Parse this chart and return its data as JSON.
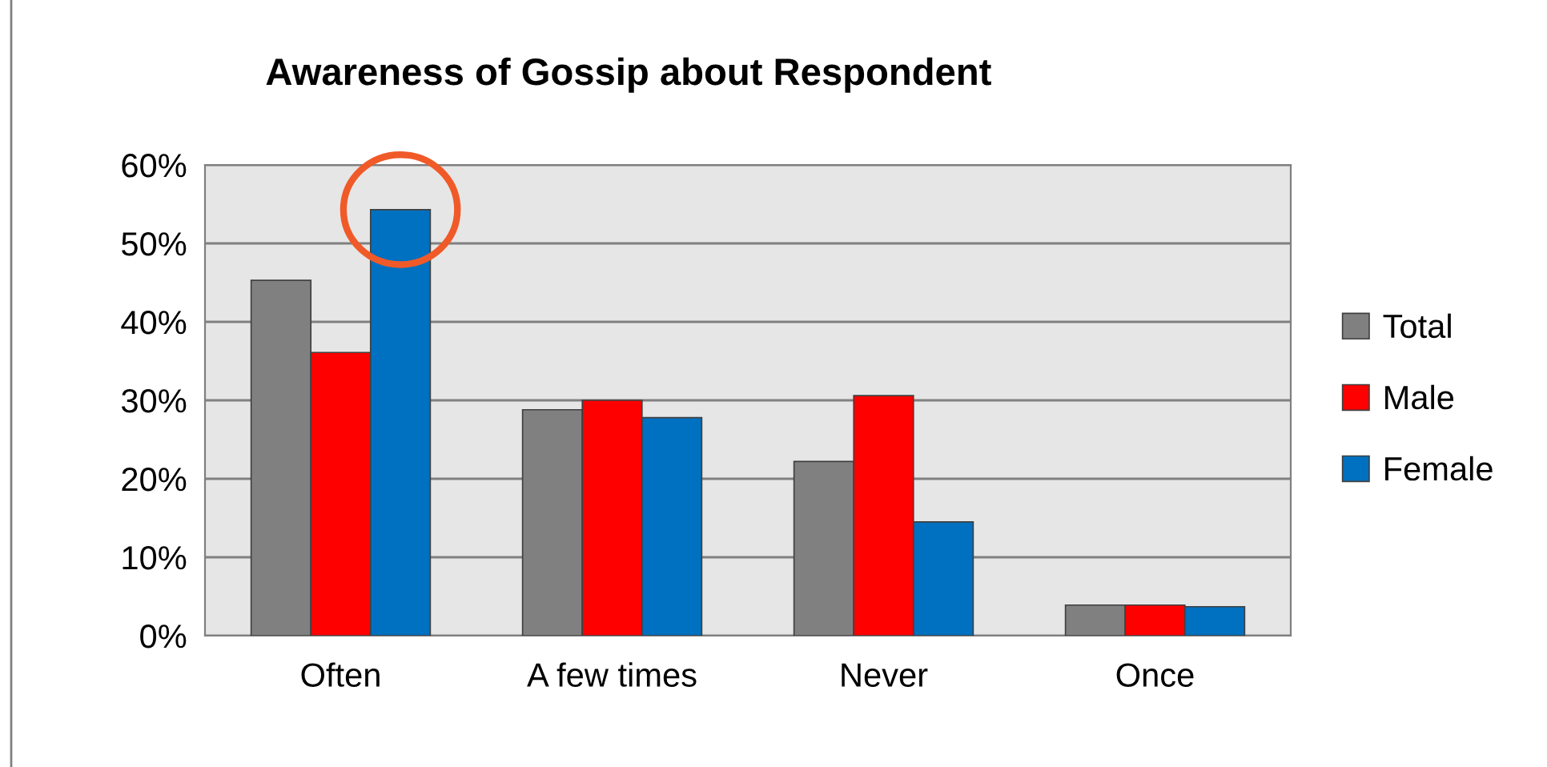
{
  "chart_data": {
    "type": "bar",
    "title": "Awareness of Gossip about Respondent",
    "categories": [
      "Often",
      "A few times",
      "Never",
      "Once"
    ],
    "series": [
      {
        "name": "Total",
        "color": "#808080",
        "values": [
          45.3,
          28.8,
          22.2,
          3.9
        ]
      },
      {
        "name": "Male",
        "color": "#ff0000",
        "values": [
          36.1,
          30.0,
          30.6,
          3.9
        ]
      },
      {
        "name": "Female",
        "color": "#0070c0",
        "values": [
          54.3,
          27.8,
          14.5,
          3.7
        ]
      }
    ],
    "ylim": [
      0,
      60
    ],
    "yticks": [
      {
        "value": 0,
        "label": "0%"
      },
      {
        "value": 10,
        "label": "10%"
      },
      {
        "value": 20,
        "label": "20%"
      },
      {
        "value": 30,
        "label": "30%"
      },
      {
        "value": 40,
        "label": "40%"
      },
      {
        "value": 50,
        "label": "50%"
      },
      {
        "value": 60,
        "label": "60%"
      }
    ],
    "grid": "y",
    "legend": "right"
  }
}
